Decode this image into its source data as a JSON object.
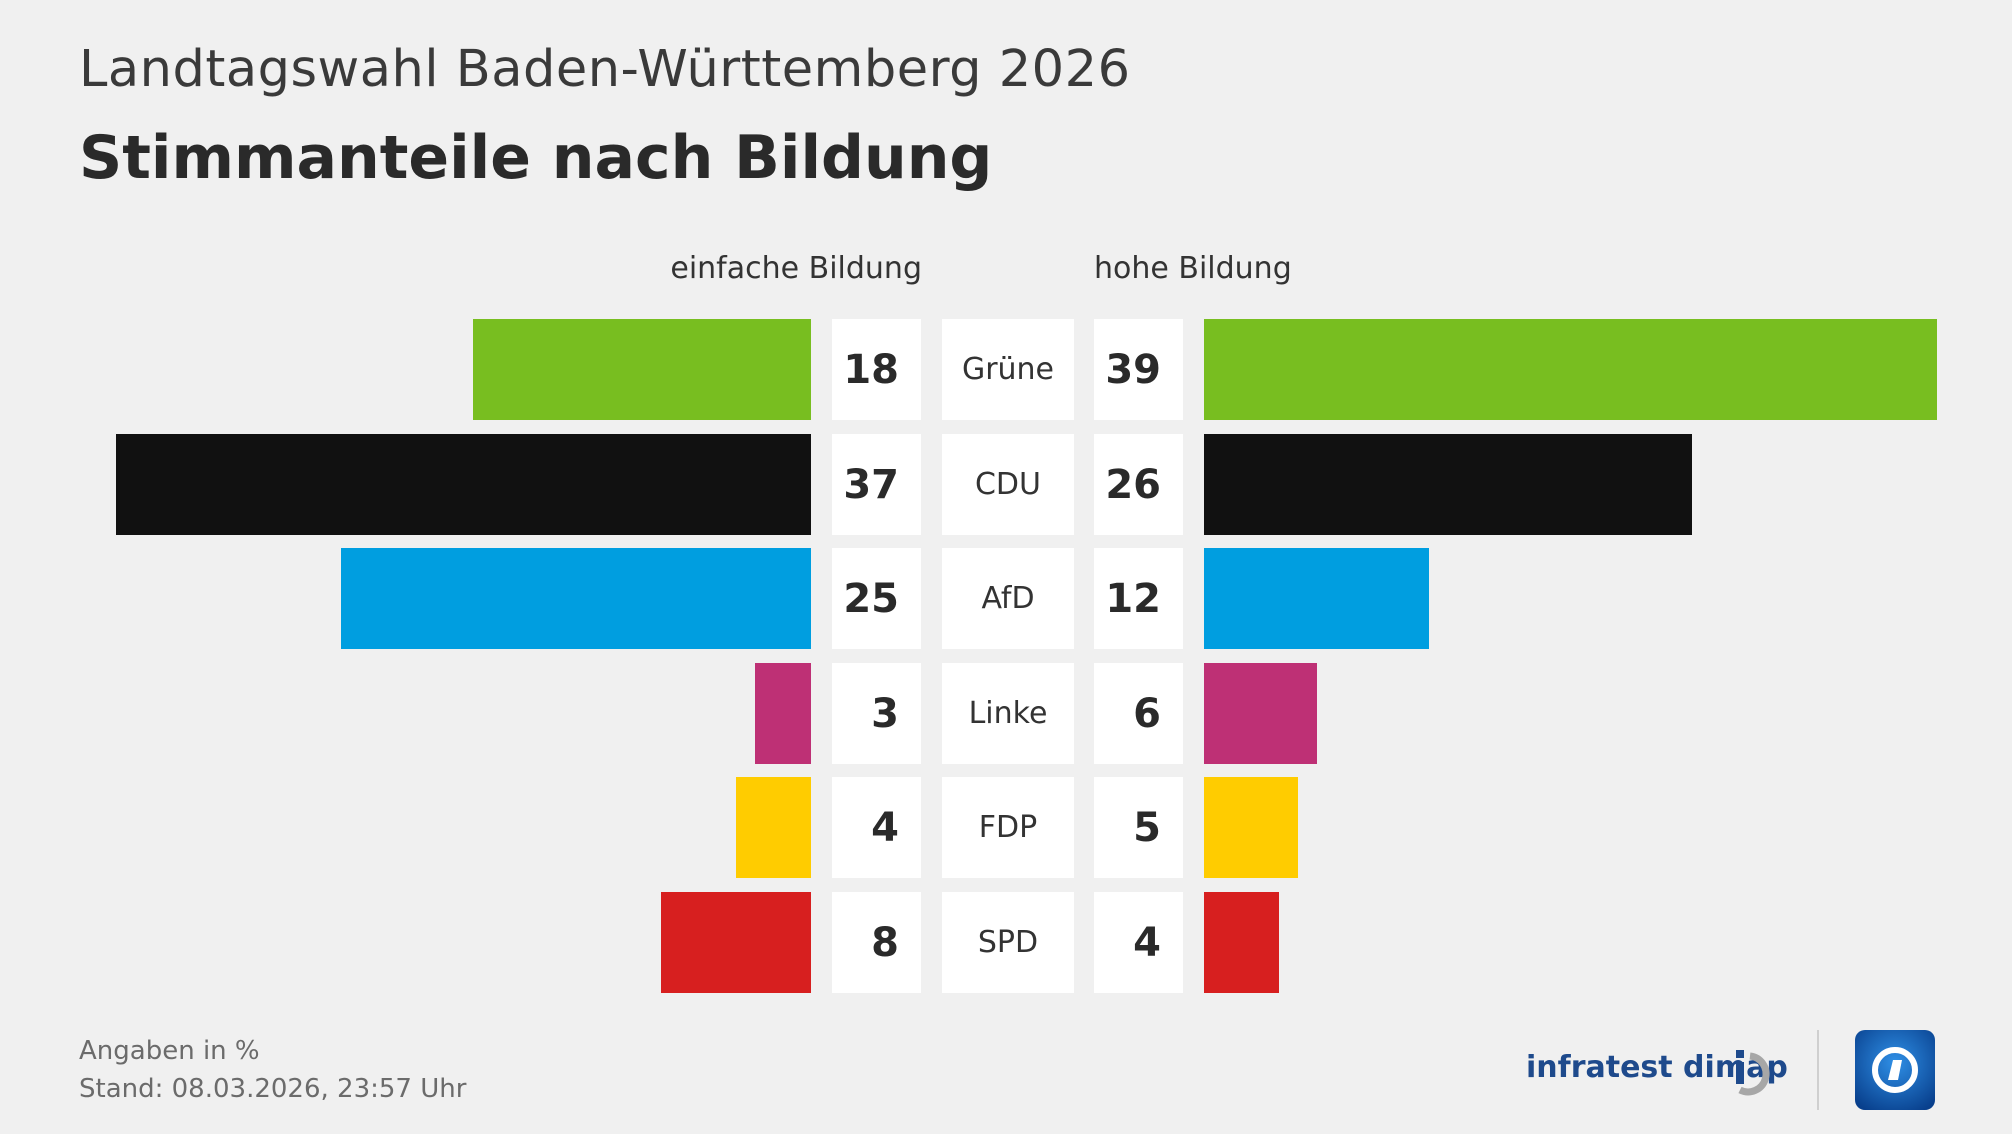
{
  "header": {
    "supertitle": "Landtagswahl Baden-Württemberg 2026",
    "title": "Stimmanteile nach Bildung"
  },
  "chart_data": {
    "type": "bar",
    "orientation": "horizontal-butterfly",
    "title": "Stimmanteile nach Bildung",
    "categories": [
      "Grüne",
      "CDU",
      "AfD",
      "Linke",
      "FDP",
      "SPD"
    ],
    "colors": [
      "#78be20",
      "#111111",
      "#009ee0",
      "#be3075",
      "#ffcc00",
      "#d71f1f"
    ],
    "series": [
      {
        "name": "einfache Bildung",
        "values": [
          18,
          37,
          25,
          3,
          4,
          8
        ]
      },
      {
        "name": "hohe Bildung",
        "values": [
          39,
          26,
          12,
          6,
          5,
          4
        ]
      }
    ],
    "unit": "%",
    "xlim": [
      0,
      39
    ]
  },
  "footer": {
    "note": "Angaben in %",
    "stand": "Stand:  08.03.2026, 23:57 Uhr",
    "brand": "infratest dimap"
  },
  "colors": {
    "background": "#f0f0f0",
    "brand_blue": "#1e4a8c",
    "ard_blue": "#0a5fb4"
  }
}
